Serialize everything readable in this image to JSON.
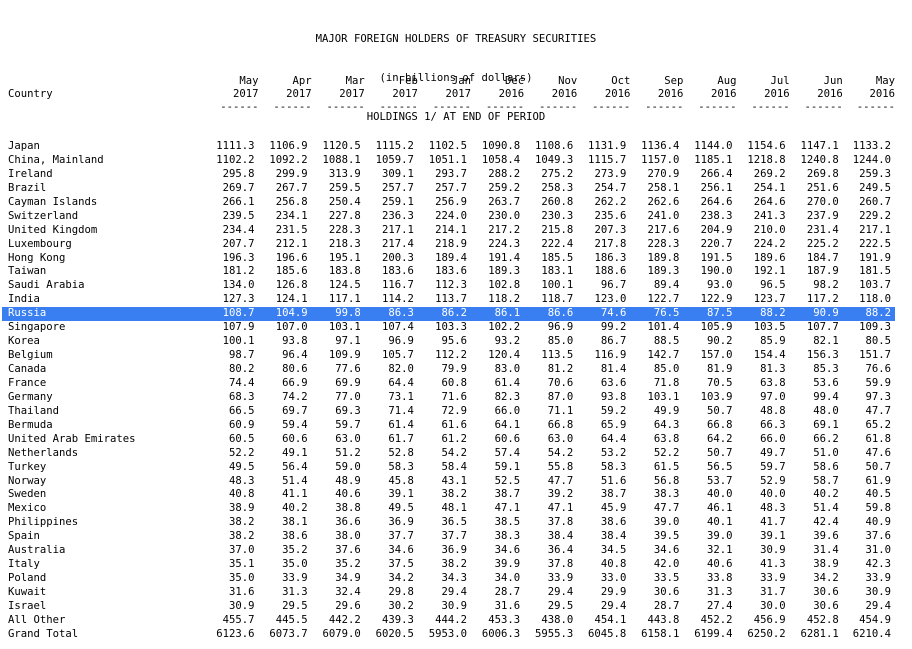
{
  "title": {
    "line1": "MAJOR FOREIGN HOLDERS OF TREASURY SECURITIES",
    "line2": "(in billions of dollars)",
    "line3": "HOLDINGS 1/ AT END OF PERIOD"
  },
  "header": {
    "country_label": "Country",
    "dashes": "------",
    "months": [
      "May",
      "Apr",
      "Mar",
      "Feb",
      "Jan",
      "Dec",
      "Nov",
      "Oct",
      "Sep",
      "Aug",
      "Jul",
      "Jun",
      "May"
    ],
    "years": [
      "2017",
      "2017",
      "2017",
      "2017",
      "2017",
      "2016",
      "2016",
      "2016",
      "2016",
      "2016",
      "2016",
      "2016",
      "2016"
    ]
  },
  "highlight_color": "#3a7ff1",
  "rows": [
    {
      "country": "Japan",
      "values": [
        "1111.3",
        "1106.9",
        "1120.5",
        "1115.2",
        "1102.5",
        "1090.8",
        "1108.6",
        "1131.9",
        "1136.4",
        "1144.0",
        "1154.6",
        "1147.1",
        "1133.2"
      ]
    },
    {
      "country": "China, Mainland",
      "values": [
        "1102.2",
        "1092.2",
        "1088.1",
        "1059.7",
        "1051.1",
        "1058.4",
        "1049.3",
        "1115.7",
        "1157.0",
        "1185.1",
        "1218.8",
        "1240.8",
        "1244.0"
      ]
    },
    {
      "country": "Ireland",
      "values": [
        "295.8",
        "299.9",
        "313.9",
        "309.1",
        "293.7",
        "288.2",
        "275.2",
        "273.9",
        "270.9",
        "266.4",
        "269.2",
        "269.8",
        "259.3"
      ]
    },
    {
      "country": "Brazil",
      "values": [
        "269.7",
        "267.7",
        "259.5",
        "257.7",
        "257.7",
        "259.2",
        "258.3",
        "254.7",
        "258.1",
        "256.1",
        "254.1",
        "251.6",
        "249.5"
      ]
    },
    {
      "country": "Cayman Islands",
      "values": [
        "266.1",
        "256.8",
        "250.4",
        "259.1",
        "256.9",
        "263.7",
        "260.8",
        "262.2",
        "262.6",
        "264.6",
        "264.6",
        "270.0",
        "260.7"
      ]
    },
    {
      "country": "Switzerland",
      "values": [
        "239.5",
        "234.1",
        "227.8",
        "236.3",
        "224.0",
        "230.0",
        "230.3",
        "235.6",
        "241.0",
        "238.3",
        "241.3",
        "237.9",
        "229.2"
      ]
    },
    {
      "country": "United Kingdom",
      "values": [
        "234.4",
        "231.5",
        "228.3",
        "217.1",
        "214.1",
        "217.2",
        "215.8",
        "207.3",
        "217.6",
        "204.9",
        "210.0",
        "231.4",
        "217.1"
      ]
    },
    {
      "country": "Luxembourg",
      "values": [
        "207.7",
        "212.1",
        "218.3",
        "217.4",
        "218.9",
        "224.3",
        "222.4",
        "217.8",
        "228.3",
        "220.7",
        "224.2",
        "225.2",
        "222.5"
      ]
    },
    {
      "country": "Hong Kong",
      "values": [
        "196.3",
        "196.6",
        "195.1",
        "200.3",
        "189.4",
        "191.4",
        "185.5",
        "186.3",
        "189.8",
        "191.5",
        "189.6",
        "184.7",
        "191.9"
      ]
    },
    {
      "country": "Taiwan",
      "values": [
        "181.2",
        "185.6",
        "183.8",
        "183.6",
        "183.6",
        "189.3",
        "183.1",
        "188.6",
        "189.3",
        "190.0",
        "192.1",
        "187.9",
        "181.5"
      ]
    },
    {
      "country": "Saudi Arabia",
      "values": [
        "134.0",
        "126.8",
        "124.5",
        "116.7",
        "112.3",
        "102.8",
        "100.1",
        "96.7",
        "89.4",
        "93.0",
        "96.5",
        "98.2",
        "103.7"
      ]
    },
    {
      "country": "India",
      "values": [
        "127.3",
        "124.1",
        "117.1",
        "114.2",
        "113.7",
        "118.2",
        "118.7",
        "123.0",
        "122.7",
        "122.9",
        "123.7",
        "117.2",
        "118.0"
      ]
    },
    {
      "country": "Russia",
      "values": [
        "108.7",
        "104.9",
        "99.8",
        "86.3",
        "86.2",
        "86.1",
        "86.6",
        "74.6",
        "76.5",
        "87.5",
        "88.2",
        "90.9",
        "88.2"
      ],
      "highlighted": true
    },
    {
      "country": "Singapore",
      "values": [
        "107.9",
        "107.0",
        "103.1",
        "107.4",
        "103.3",
        "102.2",
        "96.9",
        "99.2",
        "101.4",
        "105.9",
        "103.5",
        "107.7",
        "109.3"
      ]
    },
    {
      "country": "Korea",
      "values": [
        "100.1",
        "93.8",
        "97.1",
        "96.9",
        "95.6",
        "93.2",
        "85.0",
        "86.7",
        "88.5",
        "90.2",
        "85.9",
        "82.1",
        "80.5"
      ]
    },
    {
      "country": "Belgium",
      "values": [
        "98.7",
        "96.4",
        "109.9",
        "105.7",
        "112.2",
        "120.4",
        "113.5",
        "116.9",
        "142.7",
        "157.0",
        "154.4",
        "156.3",
        "151.7"
      ]
    },
    {
      "country": "Canada",
      "values": [
        "80.2",
        "80.6",
        "77.6",
        "82.0",
        "79.9",
        "83.0",
        "81.2",
        "81.4",
        "85.0",
        "81.9",
        "81.3",
        "85.3",
        "76.6"
      ]
    },
    {
      "country": "France",
      "values": [
        "74.4",
        "66.9",
        "69.9",
        "64.4",
        "60.8",
        "61.4",
        "70.6",
        "63.6",
        "71.8",
        "70.5",
        "63.8",
        "53.6",
        "59.9"
      ]
    },
    {
      "country": "Germany",
      "values": [
        "68.3",
        "74.2",
        "77.0",
        "73.1",
        "71.6",
        "82.3",
        "87.0",
        "93.8",
        "103.1",
        "103.9",
        "97.0",
        "99.4",
        "97.3"
      ]
    },
    {
      "country": "Thailand",
      "values": [
        "66.5",
        "69.7",
        "69.3",
        "71.4",
        "72.9",
        "66.0",
        "71.1",
        "59.2",
        "49.9",
        "50.7",
        "48.8",
        "48.0",
        "47.7"
      ]
    },
    {
      "country": "Bermuda",
      "values": [
        "60.9",
        "59.4",
        "59.7",
        "61.4",
        "61.6",
        "64.1",
        "66.8",
        "65.9",
        "64.3",
        "66.8",
        "66.3",
        "69.1",
        "65.2"
      ]
    },
    {
      "country": "United Arab Emirates",
      "values": [
        "60.5",
        "60.6",
        "63.0",
        "61.7",
        "61.2",
        "60.6",
        "63.0",
        "64.4",
        "63.8",
        "64.2",
        "66.0",
        "66.2",
        "61.8"
      ]
    },
    {
      "country": "Netherlands",
      "values": [
        "52.2",
        "49.1",
        "51.2",
        "52.8",
        "54.2",
        "57.4",
        "54.2",
        "53.2",
        "52.2",
        "50.7",
        "49.7",
        "51.0",
        "47.6"
      ]
    },
    {
      "country": "Turkey",
      "values": [
        "49.5",
        "56.4",
        "59.0",
        "58.3",
        "58.4",
        "59.1",
        "55.8",
        "58.3",
        "61.5",
        "56.5",
        "59.7",
        "58.6",
        "50.7"
      ]
    },
    {
      "country": "Norway",
      "values": [
        "48.3",
        "51.4",
        "48.9",
        "45.8",
        "43.1",
        "52.5",
        "47.7",
        "51.6",
        "56.8",
        "53.7",
        "52.9",
        "58.7",
        "61.9"
      ]
    },
    {
      "country": "Sweden",
      "values": [
        "40.8",
        "41.1",
        "40.6",
        "39.1",
        "38.2",
        "38.7",
        "39.2",
        "38.7",
        "38.3",
        "40.0",
        "40.0",
        "40.2",
        "40.5"
      ]
    },
    {
      "country": "Mexico",
      "values": [
        "38.9",
        "40.2",
        "38.8",
        "49.5",
        "48.1",
        "47.1",
        "47.1",
        "45.9",
        "47.7",
        "46.1",
        "48.3",
        "51.4",
        "59.8"
      ]
    },
    {
      "country": "Philippines",
      "values": [
        "38.2",
        "38.1",
        "36.6",
        "36.9",
        "36.5",
        "38.5",
        "37.8",
        "38.6",
        "39.0",
        "40.1",
        "41.7",
        "42.4",
        "40.9"
      ]
    },
    {
      "country": "Spain",
      "values": [
        "38.2",
        "38.6",
        "38.0",
        "37.7",
        "37.7",
        "38.3",
        "38.4",
        "38.4",
        "39.5",
        "39.0",
        "39.1",
        "39.6",
        "37.6"
      ]
    },
    {
      "country": "Australia",
      "values": [
        "37.0",
        "35.2",
        "37.6",
        "34.6",
        "36.9",
        "34.6",
        "36.4",
        "34.5",
        "34.6",
        "32.1",
        "30.9",
        "31.4",
        "31.0"
      ]
    },
    {
      "country": "Italy",
      "values": [
        "35.1",
        "35.0",
        "35.2",
        "37.5",
        "38.2",
        "39.9",
        "37.8",
        "40.8",
        "42.0",
        "40.6",
        "41.3",
        "38.9",
        "42.3"
      ]
    },
    {
      "country": "Poland",
      "values": [
        "35.0",
        "33.9",
        "34.9",
        "34.2",
        "34.3",
        "34.0",
        "33.9",
        "33.0",
        "33.5",
        "33.8",
        "33.9",
        "34.2",
        "33.9"
      ]
    },
    {
      "country": "Kuwait",
      "values": [
        "31.6",
        "31.3",
        "32.4",
        "29.8",
        "29.4",
        "28.7",
        "29.4",
        "29.9",
        "30.6",
        "31.3",
        "31.7",
        "30.6",
        "30.9"
      ]
    },
    {
      "country": "Israel",
      "values": [
        "30.9",
        "29.5",
        "29.6",
        "30.2",
        "30.9",
        "31.6",
        "29.5",
        "29.4",
        "28.7",
        "27.4",
        "30.0",
        "30.6",
        "29.4"
      ]
    },
    {
      "country": "All Other",
      "values": [
        "455.7",
        "445.5",
        "442.2",
        "439.3",
        "444.2",
        "453.3",
        "438.0",
        "454.1",
        "443.8",
        "452.2",
        "456.9",
        "452.8",
        "454.9"
      ]
    },
    {
      "country": "Grand Total",
      "values": [
        "6123.6",
        "6073.7",
        "6079.0",
        "6020.5",
        "5953.0",
        "6006.3",
        "5955.3",
        "6045.8",
        "6158.1",
        "6199.4",
        "6250.2",
        "6281.1",
        "6210.4"
      ]
    }
  ]
}
